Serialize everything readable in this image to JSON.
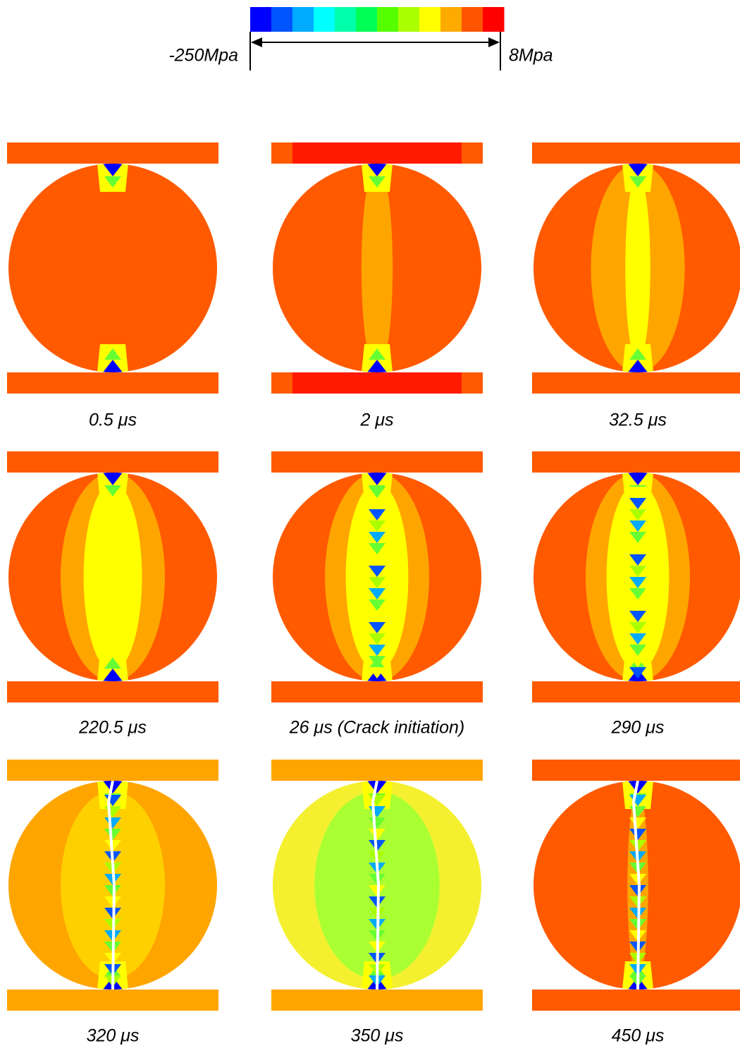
{
  "colorbar": {
    "min_label": "-250Mpa",
    "max_label": "8Mpa",
    "colors": [
      "#0000ff",
      "#0055ff",
      "#00aaff",
      "#00ffff",
      "#00ffaa",
      "#00ff55",
      "#55ff00",
      "#aaff00",
      "#ffff00",
      "#ffaa00",
      "#ff5500",
      "#ff0000"
    ]
  },
  "panels": [
    {
      "caption": "0.5 μs",
      "platen_color": "#ff5a00",
      "disk_color": "#ff5a00"
    },
    {
      "caption": "2 μs",
      "platen_color": "#ff1a00",
      "disk_color": "#ff5a00"
    },
    {
      "caption": "32.5 μs",
      "platen_color": "#ff5a00",
      "disk_color": "#ff5a00"
    },
    {
      "caption": "220.5 μs",
      "platen_color": "#ff5a00",
      "disk_color": "#ff5a00"
    },
    {
      "caption": "26 μs  (Crack initiation)",
      "platen_color": "#ff5a00",
      "disk_color": "#ff5a00"
    },
    {
      "caption": "290 μs",
      "platen_color": "#ff5a00",
      "disk_color": "#ff5a00"
    },
    {
      "caption": "320 μs",
      "platen_color": "#ffa500",
      "disk_color": "#ffa500"
    },
    {
      "caption": "350 μs",
      "platen_color": "#ffa500",
      "disk_color": "#f4f030"
    },
    {
      "caption": "450 μs",
      "platen_color": "#ff5a00",
      "disk_color": "#ff5a00"
    }
  ]
}
